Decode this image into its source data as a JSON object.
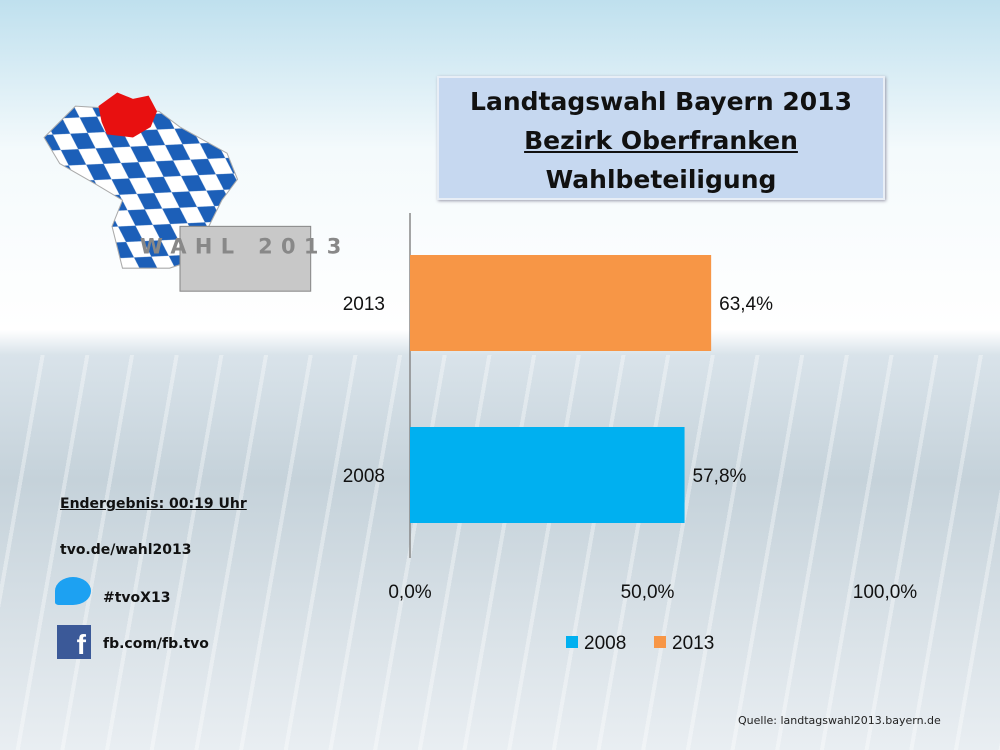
{
  "title": {
    "line1": "Landtagswahl Bayern 2013",
    "line2": "Bezirk Oberfranken",
    "line3": "Wahlbeteiligung"
  },
  "logo": {
    "text": "WAHL 2013"
  },
  "side": {
    "result": "Endergebnis: 00:19 Uhr",
    "site": "tvo.de/wahl2013",
    "twitter": "#tvoX13",
    "facebook": "fb.com/fb.tvo"
  },
  "source": "Quelle: landtagswahl2013.bayern.de",
  "colors": {
    "s2008": "#00b0f0",
    "s2013": "#f79646"
  },
  "chart_data": {
    "type": "bar",
    "orientation": "horizontal",
    "categories": [
      "2013",
      "2008"
    ],
    "values": [
      63.4,
      57.8
    ],
    "value_labels": [
      "63,4%",
      "57,8%"
    ],
    "xlim": [
      0,
      100
    ],
    "xticks": [
      "0,0%",
      "50,0%",
      "100,0%"
    ],
    "legend": [
      "2008",
      "2013"
    ],
    "legend_position": "bottom"
  }
}
